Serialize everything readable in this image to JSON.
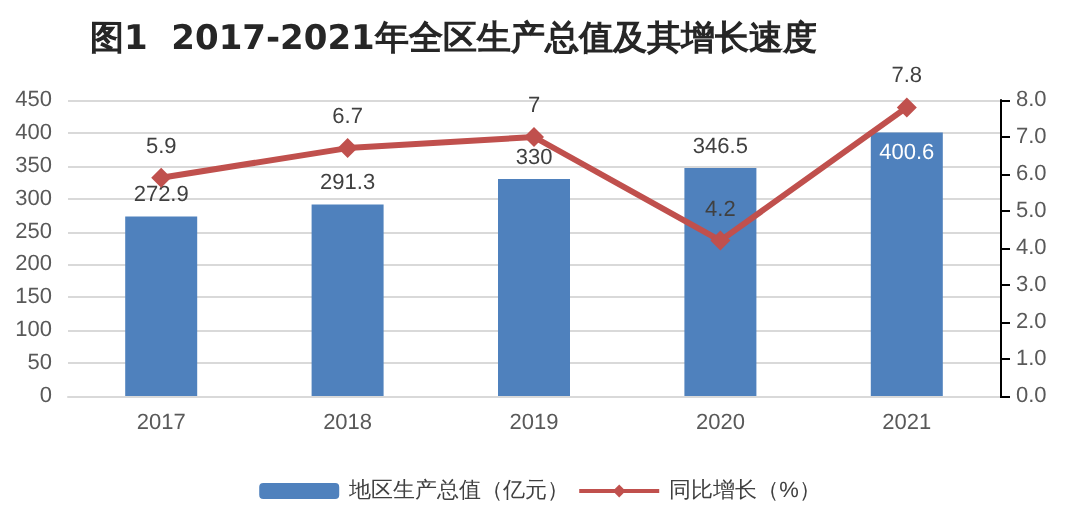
{
  "chart_data": {
    "type": "bar",
    "title": "图1  2017-2021年全区生产总值及其增长速度",
    "categories": [
      "2017",
      "2018",
      "2019",
      "2020",
      "2021"
    ],
    "series": [
      {
        "name": "地区生产总值（亿元）",
        "color": "#4f81bd",
        "values": [
          272.9,
          291.3,
          330,
          346.5,
          400.6
        ]
      },
      {
        "name": "同比增长（%）",
        "type": "line",
        "axis": "y2",
        "color": "#c0504d",
        "marker": "diamond",
        "values": [
          5.9,
          6.7,
          7,
          4.2,
          7.8
        ]
      }
    ],
    "ylim": [
      0,
      450
    ],
    "yticks": [
      0,
      50,
      100,
      150,
      200,
      250,
      300,
      350,
      400,
      450
    ],
    "y2lim": [
      0,
      8
    ],
    "y2ticks": [
      {
        "value": 0,
        "label": "0.0"
      },
      {
        "value": 1,
        "label": "1.0"
      },
      {
        "value": 2,
        "label": "2.0"
      },
      {
        "value": 3,
        "label": "3.0"
      },
      {
        "value": 4,
        "label": "4.0"
      },
      {
        "value": 5,
        "label": "5.0"
      },
      {
        "value": 6,
        "label": "6.0"
      },
      {
        "value": 7,
        "label": "7.0"
      },
      {
        "value": 8,
        "label": "8.0"
      }
    ],
    "grid": "y",
    "legend": "bottom",
    "data_labels": true
  }
}
